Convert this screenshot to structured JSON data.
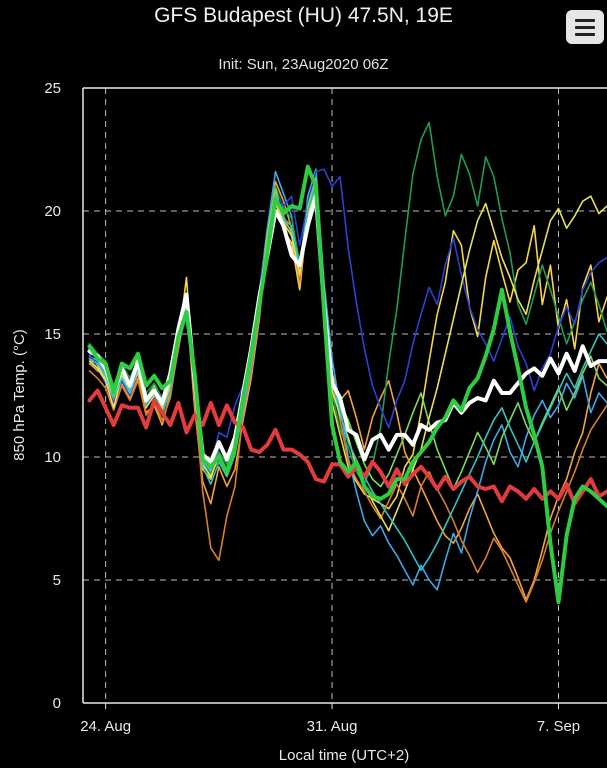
{
  "header": {
    "title": "GFS Budapest (HU) 47.5N, 19E",
    "subtitle": "Init: Sun, 23Aug2020 06Z"
  },
  "menu": {
    "icon": "hamburger-menu-icon"
  },
  "chart_data": {
    "type": "line",
    "title": "GFS Budapest (HU) 47.5N, 19E",
    "subtitle": "Init: Sun, 23Aug2020 06Z",
    "xlabel": "Local time (UTC+2)",
    "ylabel": "850 hPa Temp. (°C)",
    "ylim": [
      0,
      25
    ],
    "yticks": [
      0,
      5,
      10,
      15,
      20,
      25
    ],
    "xlim_days": [
      -0.7,
      15.5
    ],
    "xticks": [
      {
        "day": 0,
        "label": "24. Aug"
      },
      {
        "day": 7,
        "label": "31. Aug"
      },
      {
        "day": 14,
        "label": "7. Sep"
      }
    ],
    "grid": true,
    "x": [
      -0.5,
      -0.25,
      0,
      0.25,
      0.5,
      0.75,
      1,
      1.25,
      1.5,
      1.75,
      2,
      2.25,
      2.5,
      2.75,
      3,
      3.25,
      3.5,
      3.75,
      4,
      4.25,
      4.5,
      4.75,
      5,
      5.25,
      5.5,
      5.75,
      6,
      6.25,
      6.5,
      6.75,
      7,
      7.25,
      7.5,
      7.75,
      8,
      8.25,
      8.5,
      8.75,
      9,
      9.25,
      9.5,
      9.75,
      10,
      10.25,
      10.5,
      10.75,
      11,
      11.25,
      11.5,
      11.75,
      12,
      12.25,
      12.5,
      12.75,
      13,
      13.25,
      13.5,
      13.75,
      14,
      14.25,
      14.5,
      14.75,
      15,
      15.25,
      15.5
    ],
    "series": [
      {
        "color": "#ffffff",
        "width": 4,
        "values": [
          14.3,
          14.1,
          13.6,
          12.6,
          13.6,
          12.9,
          13.9,
          12.3,
          12.7,
          12.2,
          13.4,
          15.2,
          16.6,
          13.1,
          10.1,
          9.8,
          10.6,
          9.9,
          10.8,
          12.6,
          14.4,
          16.5,
          18.2,
          20.0,
          19.4,
          18.2,
          17.8,
          19.4,
          20.6,
          16.2,
          13.0,
          12.4,
          11.1,
          10.9,
          9.9,
          10.7,
          10.9,
          10.3,
          10.9,
          10.9,
          10.5,
          11.3,
          11.1,
          11.4,
          11.5,
          12.2,
          11.8,
          12.2,
          12.4,
          12.3,
          13.1,
          12.6,
          12.6,
          13.0,
          13.4,
          13.6,
          13.3,
          14.0,
          13.4,
          14.2,
          13.5,
          14.5,
          13.7,
          13.9,
          13.9
        ]
      },
      {
        "color": "#e23c3c",
        "width": 4,
        "values": [
          12.3,
          12.7,
          12.0,
          11.3,
          12.1,
          12.0,
          12.0,
          11.2,
          12.3,
          11.8,
          11.3,
          12.2,
          11.0,
          11.7,
          11.3,
          12.2,
          11.3,
          12.1,
          11.4,
          11.2,
          10.3,
          10.2,
          10.5,
          11.1,
          10.3,
          10.3,
          10.1,
          9.8,
          9.1,
          9.0,
          9.7,
          9.7,
          9.2,
          9.6,
          9.2,
          9.8,
          9.4,
          8.8,
          9.5,
          8.9,
          9.3,
          9.6,
          9.2,
          8.7,
          9.2,
          8.7,
          9.0,
          9.2,
          8.8,
          8.7,
          8.8,
          8.2,
          8.8,
          8.6,
          8.3,
          8.7,
          8.3,
          8.6,
          8.3,
          8.9,
          8.1,
          8.6,
          9.1,
          8.4,
          8.6
        ]
      },
      {
        "color": "#2ecc40",
        "width": 4,
        "values": [
          14.5,
          14.0,
          13.8,
          12.6,
          13.8,
          13.6,
          14.2,
          12.9,
          13.3,
          12.8,
          13.1,
          14.9,
          15.9,
          13.4,
          9.9,
          9.6,
          10.0,
          9.4,
          10.4,
          12.4,
          14.2,
          16.2,
          18.3,
          20.5,
          19.9,
          20.2,
          20.1,
          21.8,
          21.0,
          16.0,
          11.3,
          9.8,
          9.4,
          9.8,
          8.8,
          8.4,
          8.3,
          8.5,
          9.1,
          9.1,
          9.8,
          10.2,
          10.6,
          11.2,
          11.6,
          12.3,
          11.9,
          12.8,
          13.2,
          14.1,
          15.2,
          16.8,
          15.1,
          13.6,
          12.0,
          10.9,
          9.6,
          6.5,
          4.1,
          6.8,
          8.3,
          8.8,
          8.6,
          8.3,
          8.0
        ]
      },
      {
        "color": "#f5d742",
        "width": 1.6,
        "values": [
          14.0,
          13.7,
          13.2,
          12.1,
          13.2,
          12.6,
          13.4,
          12.0,
          12.5,
          11.9,
          12.9,
          14.7,
          17.3,
          12.5,
          9.5,
          9.1,
          10.2,
          9.3,
          10.2,
          12.1,
          13.8,
          16.3,
          18.7,
          20.4,
          19.2,
          18.7,
          16.8,
          19.9,
          21.4,
          15.3,
          12.2,
          10.9,
          9.6,
          9.0,
          8.5,
          8.3,
          8.1,
          7.9,
          8.4,
          9.6,
          10.1,
          11.8,
          13.9,
          15.8,
          17.1,
          19.2,
          18.6,
          16.1,
          14.9,
          17.3,
          18.8,
          17.5,
          16.3,
          17.6,
          17.9,
          19.4,
          16.2,
          17.8,
          15.2,
          16.4,
          14.4,
          16.9,
          17.8,
          15.5,
          16.5
        ]
      },
      {
        "color": "#f2a33a",
        "width": 1.6,
        "values": [
          13.8,
          13.5,
          13.3,
          12.3,
          13.0,
          12.4,
          13.2,
          11.8,
          12.1,
          11.3,
          12.6,
          14.4,
          16.2,
          12.0,
          9.0,
          8.1,
          9.6,
          8.8,
          9.5,
          11.5,
          13.2,
          15.6,
          18.9,
          21.2,
          20.4,
          19.3,
          17.0,
          20.3,
          21.5,
          16.8,
          13.4,
          12.3,
          12.7,
          11.6,
          10.3,
          11.6,
          12.4,
          13.1,
          11.8,
          10.2,
          9.5,
          8.8,
          8.1,
          7.4,
          6.8,
          6.5,
          7.1,
          7.9,
          8.5,
          7.7,
          6.9,
          6.3,
          5.9,
          5.1,
          4.2,
          5.0,
          6.2,
          7.5,
          8.4,
          9.1,
          10.2,
          11.0,
          12.6,
          13.8,
          13.2
        ]
      },
      {
        "color": "#3fa7e8",
        "width": 1.6,
        "values": [
          14.1,
          13.9,
          13.4,
          12.4,
          13.4,
          12.7,
          13.7,
          12.1,
          12.6,
          11.7,
          12.8,
          14.9,
          15.9,
          12.8,
          9.8,
          9.4,
          10.4,
          10.1,
          10.9,
          12.5,
          14.0,
          16.7,
          19.3,
          21.6,
          20.7,
          19.8,
          17.5,
          20.6,
          21.7,
          17.1,
          14.0,
          12.0,
          10.0,
          8.6,
          7.4,
          6.8,
          7.2,
          6.5,
          6.0,
          5.4,
          4.8,
          5.6,
          5.0,
          4.6,
          5.8,
          6.9,
          6.1,
          7.5,
          8.6,
          9.8,
          10.7,
          11.3,
          10.2,
          9.6,
          10.8,
          11.7,
          12.3,
          11.6,
          12.1,
          13.0,
          12.4,
          13.3,
          11.8,
          12.6,
          12.2
        ]
      },
      {
        "color": "#1f9d55",
        "width": 1.6,
        "values": [
          14.6,
          14.2,
          13.9,
          12.9,
          13.8,
          13.2,
          14.0,
          12.6,
          13.0,
          12.4,
          13.2,
          15.1,
          16.0,
          13.0,
          9.7,
          9.3,
          10.2,
          9.7,
          10.6,
          12.4,
          14.3,
          16.6,
          18.9,
          21.0,
          20.1,
          19.7,
          17.9,
          20.1,
          21.1,
          16.3,
          12.6,
          11.1,
          10.4,
          9.4,
          8.9,
          9.7,
          11.2,
          13.8,
          16.0,
          18.8,
          21.5,
          22.9,
          23.6,
          21.4,
          19.8,
          20.6,
          22.3,
          21.5,
          20.2,
          22.2,
          21.4,
          19.7,
          18.3,
          16.2,
          15.4,
          16.6,
          17.8,
          16.8,
          15.7,
          14.6,
          15.5,
          16.4,
          17.1,
          16.2,
          15.1
        ]
      },
      {
        "color": "#2f3fd0",
        "width": 1.6,
        "values": [
          14.2,
          13.6,
          13.0,
          12.2,
          13.1,
          12.5,
          13.5,
          12.2,
          12.8,
          12.0,
          12.7,
          14.6,
          15.7,
          12.7,
          10.2,
          9.6,
          11.0,
          10.8,
          12.1,
          12.9,
          14.4,
          16.8,
          19.0,
          20.8,
          20.2,
          20.6,
          18.6,
          20.3,
          21.6,
          21.7,
          21.0,
          21.4,
          18.5,
          16.3,
          14.4,
          12.9,
          12.0,
          11.2,
          12.3,
          13.1,
          14.6,
          15.8,
          16.9,
          16.2,
          17.8,
          18.9,
          17.4,
          16.1,
          15.2,
          14.6,
          13.9,
          14.8,
          15.7,
          14.5,
          13.8,
          12.7,
          13.6,
          14.2,
          15.3,
          16.1,
          15.4,
          16.8,
          17.5,
          17.9,
          18.1
        ]
      },
      {
        "color": "#d97e2b",
        "width": 1.6,
        "values": [
          13.5,
          13.2,
          12.8,
          11.9,
          12.9,
          12.3,
          13.1,
          11.7,
          12.2,
          11.5,
          12.4,
          14.5,
          16.1,
          12.4,
          8.6,
          6.3,
          5.8,
          7.6,
          8.8,
          11.8,
          13.4,
          15.9,
          18.6,
          20.7,
          19.8,
          19.1,
          17.2,
          19.6,
          20.8,
          16.4,
          13.1,
          11.5,
          9.8,
          9.1,
          8.6,
          8.0,
          7.5,
          8.2,
          8.9,
          8.3,
          7.6,
          8.8,
          9.4,
          8.7,
          8.1,
          7.4,
          6.6,
          6.0,
          5.3,
          5.9,
          6.7,
          6.2,
          5.5,
          4.8,
          4.1,
          4.9,
          5.8,
          6.9,
          7.8,
          8.6,
          9.4,
          10.3,
          11.1,
          11.6,
          12.1
        ]
      },
      {
        "color": "#7ed957",
        "width": 1.6,
        "values": [
          14.4,
          14.0,
          13.5,
          12.5,
          13.5,
          12.8,
          13.8,
          12.4,
          12.9,
          12.1,
          13.0,
          14.8,
          15.8,
          13.2,
          9.9,
          9.5,
          10.5,
          10.0,
          10.7,
          12.3,
          14.1,
          16.4,
          19.1,
          20.9,
          19.6,
          19.2,
          17.6,
          20.2,
          21.3,
          16.1,
          12.9,
          12.2,
          11.5,
          10.6,
          9.7,
          9.1,
          8.8,
          9.3,
          10.1,
          10.9,
          11.8,
          12.6,
          11.4,
          10.3,
          9.5,
          8.7,
          9.4,
          10.2,
          11.0,
          10.4,
          9.7,
          10.8,
          11.5,
          12.2,
          11.3,
          10.6,
          11.4,
          12.1,
          12.8,
          11.9,
          12.6,
          13.4,
          14.1,
          13.2,
          12.9
        ]
      },
      {
        "color": "#e8e05a",
        "width": 1.6,
        "values": [
          13.9,
          13.6,
          13.1,
          12.0,
          13.3,
          12.6,
          13.5,
          12.2,
          12.7,
          12.0,
          12.9,
          14.6,
          15.9,
          12.9,
          9.7,
          9.2,
          10.0,
          9.5,
          10.4,
          12.0,
          13.9,
          16.2,
          18.6,
          20.5,
          19.5,
          19.0,
          17.4,
          19.8,
          20.9,
          15.9,
          12.7,
          11.7,
          10.8,
          9.6,
          8.9,
          8.2,
          7.6,
          7.0,
          7.8,
          8.6,
          9.5,
          10.3,
          11.6,
          12.8,
          14.2,
          15.6,
          17.0,
          18.4,
          19.6,
          20.3,
          19.2,
          18.1,
          17.3,
          16.4,
          15.8,
          17.2,
          18.4,
          19.6,
          20.1,
          19.3,
          19.8,
          20.4,
          20.6,
          19.9,
          20.2
        ]
      },
      {
        "color": "#33c3c3",
        "width": 1.6,
        "values": [
          14.0,
          13.8,
          13.3,
          12.4,
          13.2,
          12.6,
          13.6,
          12.2,
          12.6,
          11.8,
          12.7,
          14.7,
          16.1,
          12.8,
          9.6,
          8.9,
          9.8,
          9.2,
          10.1,
          11.9,
          13.7,
          16.0,
          18.5,
          20.6,
          19.7,
          19.4,
          17.7,
          20.0,
          21.0,
          16.5,
          13.2,
          11.8,
          10.6,
          9.9,
          9.2,
          8.6,
          8.1,
          7.6,
          7.1,
          6.6,
          6.0,
          5.4,
          5.9,
          6.5,
          7.2,
          7.9,
          8.6,
          9.3,
          10.0,
          10.8,
          11.5,
          12.0,
          11.2,
          10.5,
          9.8,
          10.6,
          11.3,
          12.0,
          12.7,
          13.4,
          12.8,
          13.6,
          14.3,
          15.0,
          14.6
        ]
      }
    ]
  },
  "axes": {
    "xlabel": "Local time (UTC+2)",
    "ylabel": "850 hPa Temp. (°C)",
    "yticks": [
      "0",
      "5",
      "10",
      "15",
      "20",
      "25"
    ],
    "xticks": [
      "24. Aug",
      "31. Aug",
      "7. Sep"
    ]
  }
}
